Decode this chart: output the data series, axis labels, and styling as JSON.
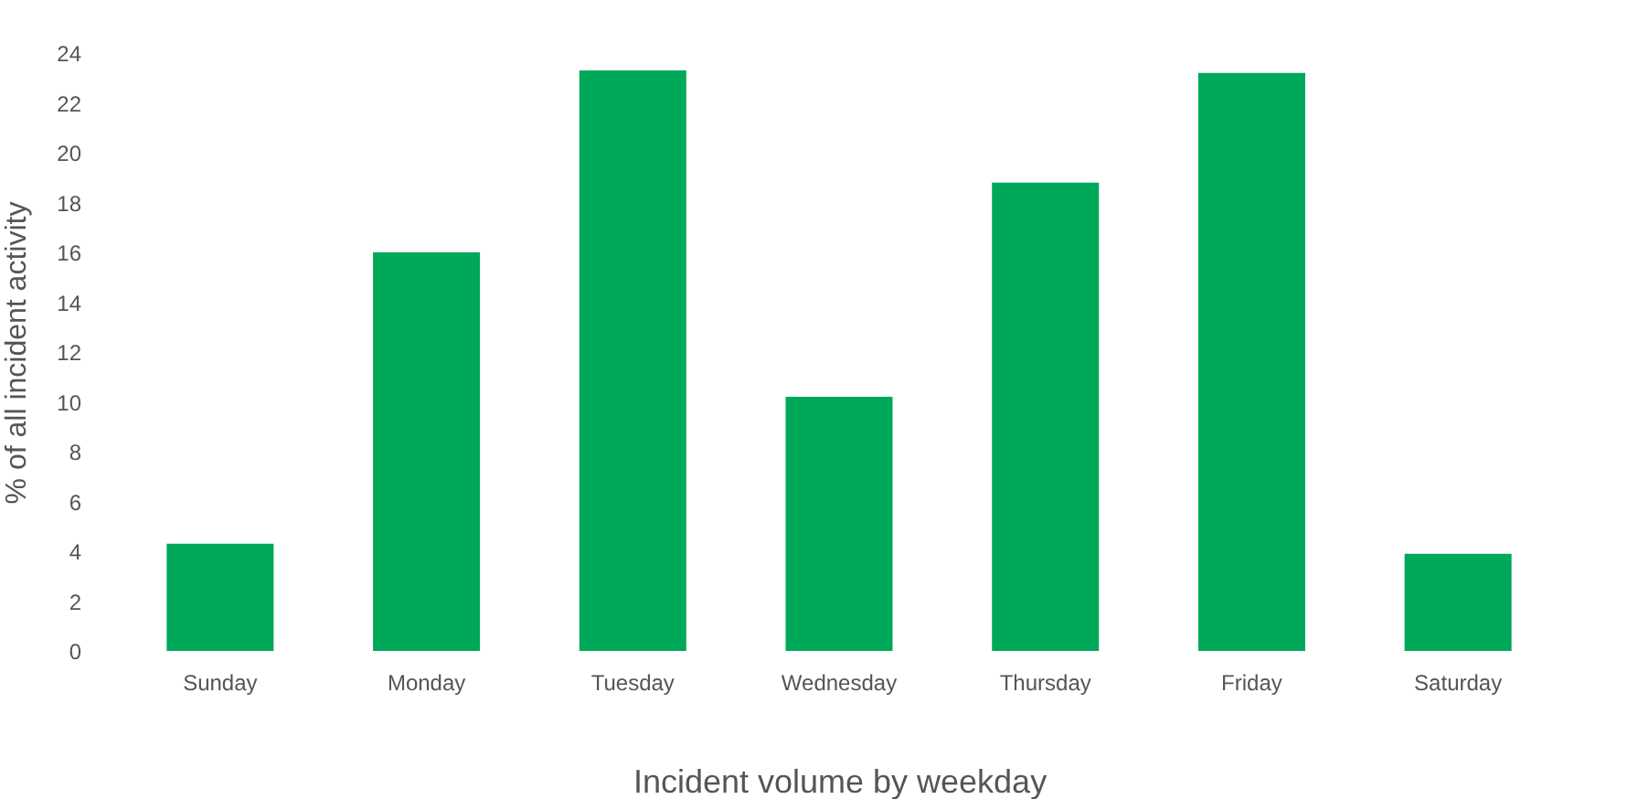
{
  "chart_data": {
    "type": "bar",
    "xlabel": "Incident volume by weekday",
    "ylabel": "% of all incident activity",
    "categories": [
      "Sunday",
      "Monday",
      "Tuesday",
      "Wednesday",
      "Thursday",
      "Friday",
      "Saturday"
    ],
    "values": [
      4.3,
      16.0,
      23.3,
      10.2,
      18.8,
      23.2,
      3.9
    ],
    "color": "#00a85a",
    "ylim": [
      0,
      24
    ],
    "yticks": [
      0,
      2,
      4,
      6,
      8,
      10,
      12,
      14,
      16,
      18,
      20,
      22,
      24
    ],
    "grid": false
  }
}
